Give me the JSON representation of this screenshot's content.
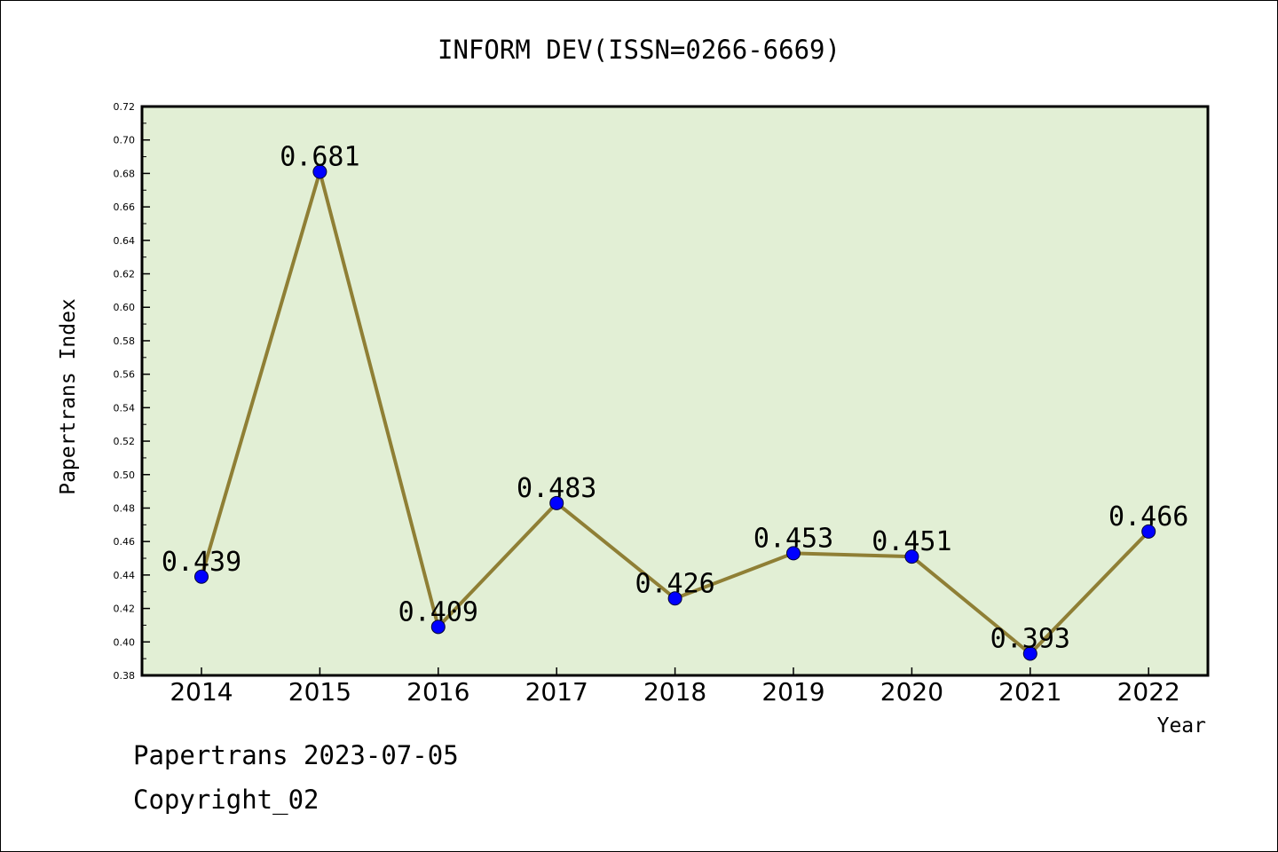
{
  "chart_data": {
    "type": "line",
    "title": "INFORM DEV(ISSN=0266-6669)",
    "xlabel": "Year",
    "ylabel": "Papertrans Index",
    "categories": [
      "2014",
      "2015",
      "2016",
      "2017",
      "2018",
      "2019",
      "2020",
      "2021",
      "2022"
    ],
    "series": [
      {
        "values": [
          0.439,
          0.681,
          0.409,
          0.483,
          0.426,
          0.453,
          0.451,
          0.393,
          0.466
        ],
        "labels": [
          "0.439",
          "0.681",
          "0.409",
          "0.483",
          "0.426",
          "0.453",
          "0.451",
          "0.393",
          "0.466"
        ]
      }
    ],
    "ylim": [
      0.38,
      0.72
    ],
    "yticks": [
      "0.38",
      "0.40",
      "0.42",
      "0.44",
      "0.46",
      "0.48",
      "0.50",
      "0.52",
      "0.54",
      "0.56",
      "0.58",
      "0.60",
      "0.62",
      "0.64",
      "0.66",
      "0.68",
      "0.70",
      "0.72"
    ],
    "grid": false,
    "legend": "none",
    "colors": {
      "plot_background": "#e2efd5",
      "line": "#8f7f35",
      "marker": "#0000ff",
      "axis": "#000000"
    }
  },
  "footer": {
    "date_line": "Papertrans 2023-07-05",
    "copyright_line": "Copyright_02"
  }
}
